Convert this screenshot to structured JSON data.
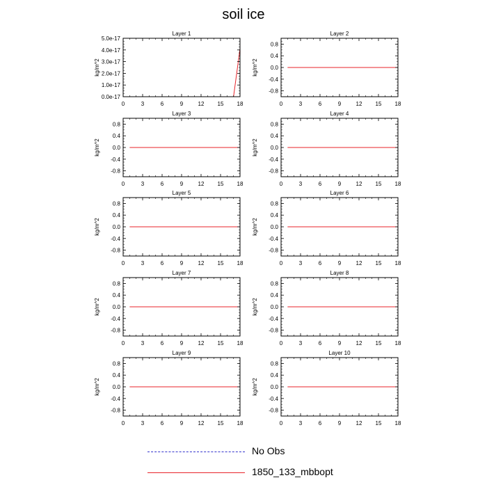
{
  "figure": {
    "title": "soil ice"
  },
  "legend": {
    "items": [
      {
        "label": "No Obs",
        "color": "#3333cc",
        "style": "dashed"
      },
      {
        "label": "1850_133_mbbopt",
        "color": "#e8232a",
        "style": "solid"
      }
    ]
  },
  "chart_data": [
    {
      "type": "line",
      "title": "Layer 1",
      "ylabel": "kg/m^2",
      "xlim": [
        0,
        18
      ],
      "ylim": [
        0,
        5e-17
      ],
      "xticks": [
        0,
        3,
        6,
        9,
        12,
        15,
        18
      ],
      "yticks": [
        0,
        1e-17,
        2e-17,
        3e-17,
        4e-17,
        5e-17
      ],
      "ytick_labels": [
        "0.0e-17",
        "1.0e-17",
        "2.0e-17",
        "3.0e-17",
        "4.0e-17",
        "5.0e-17"
      ],
      "series": [
        {
          "name": "1850_133_mbbopt",
          "color": "#e8232a",
          "x": [
            1,
            2,
            3,
            4,
            5,
            6,
            7,
            8,
            9,
            10,
            11,
            12,
            13,
            14,
            15,
            16,
            17,
            18
          ],
          "y": [
            0,
            0,
            0,
            0,
            0,
            0,
            0,
            0,
            0,
            0,
            0,
            0,
            0,
            0,
            0,
            0,
            0,
            4.1e-17
          ]
        }
      ]
    },
    {
      "type": "line",
      "title": "Layer 2",
      "ylabel": "kg/m^2",
      "xlim": [
        0,
        18
      ],
      "ylim": [
        -1,
        1
      ],
      "xticks": [
        0,
        3,
        6,
        9,
        12,
        15,
        18
      ],
      "yticks": [
        -0.8,
        -0.4,
        0,
        0.4,
        0.8
      ],
      "ytick_labels": [
        "-0.8",
        "-0.4",
        "0.0",
        "0.4",
        "0.8"
      ],
      "series": [
        {
          "name": "1850_133_mbbopt",
          "color": "#e8232a",
          "x": [
            1,
            2,
            3,
            4,
            5,
            6,
            7,
            8,
            9,
            10,
            11,
            12,
            13,
            14,
            15,
            16,
            17,
            18
          ],
          "y": [
            0,
            0,
            0,
            0,
            0,
            0,
            0,
            0,
            0,
            0,
            0,
            0,
            0,
            0,
            0,
            0,
            0,
            0
          ]
        }
      ]
    },
    {
      "type": "line",
      "title": "Layer 3",
      "ylabel": "kg/m^2",
      "xlim": [
        0,
        18
      ],
      "ylim": [
        -1,
        1
      ],
      "xticks": [
        0,
        3,
        6,
        9,
        12,
        15,
        18
      ],
      "yticks": [
        -0.8,
        -0.4,
        0,
        0.4,
        0.8
      ],
      "ytick_labels": [
        "-0.8",
        "-0.4",
        "0.0",
        "0.4",
        "0.8"
      ],
      "series": [
        {
          "name": "1850_133_mbbopt",
          "color": "#e8232a",
          "x": [
            1,
            2,
            3,
            4,
            5,
            6,
            7,
            8,
            9,
            10,
            11,
            12,
            13,
            14,
            15,
            16,
            17,
            18
          ],
          "y": [
            0,
            0,
            0,
            0,
            0,
            0,
            0,
            0,
            0,
            0,
            0,
            0,
            0,
            0,
            0,
            0,
            0,
            0
          ]
        }
      ]
    },
    {
      "type": "line",
      "title": "Layer 4",
      "ylabel": "kg/m^2",
      "xlim": [
        0,
        18
      ],
      "ylim": [
        -1,
        1
      ],
      "xticks": [
        0,
        3,
        6,
        9,
        12,
        15,
        18
      ],
      "yticks": [
        -0.8,
        -0.4,
        0,
        0.4,
        0.8
      ],
      "ytick_labels": [
        "-0.8",
        "-0.4",
        "0.0",
        "0.4",
        "0.8"
      ],
      "series": [
        {
          "name": "1850_133_mbbopt",
          "color": "#e8232a",
          "x": [
            1,
            2,
            3,
            4,
            5,
            6,
            7,
            8,
            9,
            10,
            11,
            12,
            13,
            14,
            15,
            16,
            17,
            18
          ],
          "y": [
            0,
            0,
            0,
            0,
            0,
            0,
            0,
            0,
            0,
            0,
            0,
            0,
            0,
            0,
            0,
            0,
            0,
            0
          ]
        }
      ]
    },
    {
      "type": "line",
      "title": "Layer 5",
      "ylabel": "kg/m^2",
      "xlim": [
        0,
        18
      ],
      "ylim": [
        -1,
        1
      ],
      "xticks": [
        0,
        3,
        6,
        9,
        12,
        15,
        18
      ],
      "yticks": [
        -0.8,
        -0.4,
        0,
        0.4,
        0.8
      ],
      "ytick_labels": [
        "-0.8",
        "-0.4",
        "0.0",
        "0.4",
        "0.8"
      ],
      "series": [
        {
          "name": "1850_133_mbbopt",
          "color": "#e8232a",
          "x": [
            1,
            2,
            3,
            4,
            5,
            6,
            7,
            8,
            9,
            10,
            11,
            12,
            13,
            14,
            15,
            16,
            17,
            18
          ],
          "y": [
            0,
            0,
            0,
            0,
            0,
            0,
            0,
            0,
            0,
            0,
            0,
            0,
            0,
            0,
            0,
            0,
            0,
            0
          ]
        }
      ]
    },
    {
      "type": "line",
      "title": "Layer 6",
      "ylabel": "kg/m^2",
      "xlim": [
        0,
        18
      ],
      "ylim": [
        -1,
        1
      ],
      "xticks": [
        0,
        3,
        6,
        9,
        12,
        15,
        18
      ],
      "yticks": [
        -0.8,
        -0.4,
        0,
        0.4,
        0.8
      ],
      "ytick_labels": [
        "-0.8",
        "-0.4",
        "0.0",
        "0.4",
        "0.8"
      ],
      "series": [
        {
          "name": "1850_133_mbbopt",
          "color": "#e8232a",
          "x": [
            1,
            2,
            3,
            4,
            5,
            6,
            7,
            8,
            9,
            10,
            11,
            12,
            13,
            14,
            15,
            16,
            17,
            18
          ],
          "y": [
            0,
            0,
            0,
            0,
            0,
            0,
            0,
            0,
            0,
            0,
            0,
            0,
            0,
            0,
            0,
            0,
            0,
            0
          ]
        }
      ]
    },
    {
      "type": "line",
      "title": "Layer 7",
      "ylabel": "kg/m^2",
      "xlim": [
        0,
        18
      ],
      "ylim": [
        -1,
        1
      ],
      "xticks": [
        0,
        3,
        6,
        9,
        12,
        15,
        18
      ],
      "yticks": [
        -0.8,
        -0.4,
        0,
        0.4,
        0.8
      ],
      "ytick_labels": [
        "-0.8",
        "-0.4",
        "0.0",
        "0.4",
        "0.8"
      ],
      "series": [
        {
          "name": "1850_133_mbbopt",
          "color": "#e8232a",
          "x": [
            1,
            2,
            3,
            4,
            5,
            6,
            7,
            8,
            9,
            10,
            11,
            12,
            13,
            14,
            15,
            16,
            17,
            18
          ],
          "y": [
            0,
            0,
            0,
            0,
            0,
            0,
            0,
            0,
            0,
            0,
            0,
            0,
            0,
            0,
            0,
            0,
            0,
            0
          ]
        }
      ]
    },
    {
      "type": "line",
      "title": "Layer 8",
      "ylabel": "kg/m^2",
      "xlim": [
        0,
        18
      ],
      "ylim": [
        -1,
        1
      ],
      "xticks": [
        0,
        3,
        6,
        9,
        12,
        15,
        18
      ],
      "yticks": [
        -0.8,
        -0.4,
        0,
        0.4,
        0.8
      ],
      "ytick_labels": [
        "-0.8",
        "-0.4",
        "0.0",
        "0.4",
        "0.8"
      ],
      "series": [
        {
          "name": "1850_133_mbbopt",
          "color": "#e8232a",
          "x": [
            1,
            2,
            3,
            4,
            5,
            6,
            7,
            8,
            9,
            10,
            11,
            12,
            13,
            14,
            15,
            16,
            17,
            18
          ],
          "y": [
            0,
            0,
            0,
            0,
            0,
            0,
            0,
            0,
            0,
            0,
            0,
            0,
            0,
            0,
            0,
            0,
            0,
            0
          ]
        }
      ]
    },
    {
      "type": "line",
      "title": "Layer 9",
      "ylabel": "kg/m^2",
      "xlim": [
        0,
        18
      ],
      "ylim": [
        -1,
        1
      ],
      "xticks": [
        0,
        3,
        6,
        9,
        12,
        15,
        18
      ],
      "yticks": [
        -0.8,
        -0.4,
        0,
        0.4,
        0.8
      ],
      "ytick_labels": [
        "-0.8",
        "-0.4",
        "0.0",
        "0.4",
        "0.8"
      ],
      "series": [
        {
          "name": "1850_133_mbbopt",
          "color": "#e8232a",
          "x": [
            1,
            2,
            3,
            4,
            5,
            6,
            7,
            8,
            9,
            10,
            11,
            12,
            13,
            14,
            15,
            16,
            17,
            18
          ],
          "y": [
            0,
            0,
            0,
            0,
            0,
            0,
            0,
            0,
            0,
            0,
            0,
            0,
            0,
            0,
            0,
            0,
            0,
            0
          ]
        }
      ]
    },
    {
      "type": "line",
      "title": "Layer 10",
      "ylabel": "kg/m^2",
      "xlim": [
        0,
        18
      ],
      "ylim": [
        -1,
        1
      ],
      "xticks": [
        0,
        3,
        6,
        9,
        12,
        15,
        18
      ],
      "yticks": [
        -0.8,
        -0.4,
        0,
        0.4,
        0.8
      ],
      "ytick_labels": [
        "-0.8",
        "-0.4",
        "0.0",
        "0.4",
        "0.8"
      ],
      "series": [
        {
          "name": "1850_133_mbbopt",
          "color": "#e8232a",
          "x": [
            1,
            2,
            3,
            4,
            5,
            6,
            7,
            8,
            9,
            10,
            11,
            12,
            13,
            14,
            15,
            16,
            17,
            18
          ],
          "y": [
            0,
            0,
            0,
            0,
            0,
            0,
            0,
            0,
            0,
            0,
            0,
            0,
            0,
            0,
            0,
            0,
            0,
            0
          ]
        }
      ]
    }
  ]
}
